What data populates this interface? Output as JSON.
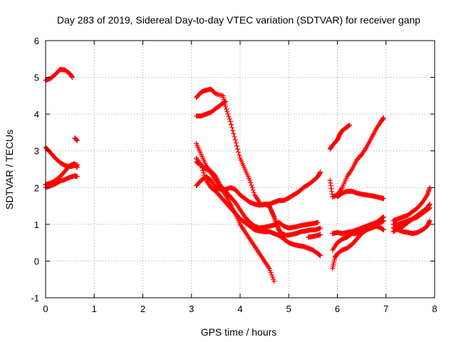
{
  "chart_data": {
    "type": "scatter",
    "title": "Day 283 of 2019, Sidereal Day-to-day VTEC variation (SDTVAR) for receiver ganp",
    "xlabel": "GPS time / hours",
    "ylabel": "SDTVAR / TECUs",
    "xlim": [
      0,
      8
    ],
    "ylim": [
      -1,
      6
    ],
    "xticks": [
      "0",
      "1",
      "2",
      "3",
      "4",
      "5",
      "6",
      "7",
      "8"
    ],
    "yticks": [
      "-1",
      "0",
      "1",
      "2",
      "3",
      "4",
      "5",
      "6"
    ],
    "grid": true,
    "marker": "plus",
    "color": "#ff0000",
    "segments": [
      [
        [
          0.0,
          4.92
        ],
        [
          0.1,
          4.97
        ],
        [
          0.2,
          5.08
        ],
        [
          0.3,
          5.22
        ],
        [
          0.4,
          5.2
        ],
        [
          0.5,
          5.1
        ],
        [
          0.55,
          5.0
        ]
      ],
      [
        [
          0.6,
          3.35
        ],
        [
          0.65,
          3.28
        ]
      ],
      [
        [
          0.0,
          3.1
        ],
        [
          0.1,
          2.95
        ],
        [
          0.2,
          2.8
        ],
        [
          0.3,
          2.68
        ],
        [
          0.4,
          2.6
        ],
        [
          0.5,
          2.57
        ],
        [
          0.6,
          2.6
        ],
        [
          0.65,
          2.62
        ]
      ],
      [
        [
          0.0,
          2.08
        ],
        [
          0.05,
          2.1
        ],
        [
          0.15,
          2.15
        ],
        [
          0.3,
          2.3
        ],
        [
          0.4,
          2.45
        ],
        [
          0.5,
          2.6
        ],
        [
          0.6,
          2.65
        ],
        [
          0.65,
          2.55
        ]
      ],
      [
        [
          0.0,
          2.0
        ],
        [
          0.1,
          2.05
        ],
        [
          0.2,
          2.1
        ],
        [
          0.3,
          2.18
        ],
        [
          0.4,
          2.22
        ],
        [
          0.5,
          2.28
        ],
        [
          0.6,
          2.32
        ],
        [
          0.65,
          2.3
        ]
      ],
      [
        [
          3.1,
          4.45
        ],
        [
          3.2,
          4.6
        ],
        [
          3.3,
          4.65
        ],
        [
          3.4,
          4.68
        ],
        [
          3.5,
          4.55
        ],
        [
          3.65,
          4.5
        ],
        [
          3.7,
          4.2
        ],
        [
          3.8,
          3.8
        ],
        [
          3.9,
          3.3
        ],
        [
          4.0,
          2.8
        ],
        [
          4.1,
          2.5
        ],
        [
          4.2,
          2.2
        ],
        [
          4.3,
          1.8
        ],
        [
          4.4,
          1.6
        ]
      ],
      [
        [
          3.1,
          3.95
        ],
        [
          3.2,
          3.95
        ],
        [
          3.3,
          4.0
        ],
        [
          3.4,
          4.05
        ],
        [
          3.5,
          4.15
        ],
        [
          3.6,
          4.25
        ],
        [
          3.7,
          4.35
        ]
      ],
      [
        [
          3.1,
          2.05
        ],
        [
          3.2,
          2.2
        ],
        [
          3.3,
          2.3
        ],
        [
          3.4,
          2.2
        ],
        [
          3.5,
          2.0
        ],
        [
          3.6,
          1.95
        ],
        [
          3.7,
          1.95
        ],
        [
          3.8,
          2.0
        ],
        [
          3.9,
          1.95
        ],
        [
          4.0,
          1.8
        ],
        [
          4.1,
          1.7
        ],
        [
          4.2,
          1.6
        ],
        [
          4.3,
          1.55
        ],
        [
          4.4,
          1.52
        ],
        [
          4.5,
          1.55
        ],
        [
          4.6,
          1.55
        ],
        [
          4.7,
          1.6
        ],
        [
          4.8,
          1.65
        ],
        [
          4.9,
          1.65
        ],
        [
          5.0,
          1.72
        ],
        [
          5.1,
          1.8
        ],
        [
          5.2,
          1.88
        ],
        [
          5.3,
          2.0
        ],
        [
          5.4,
          2.08
        ],
        [
          5.5,
          2.18
        ],
        [
          5.6,
          2.3
        ],
        [
          5.65,
          2.42
        ]
      ],
      [
        [
          3.1,
          3.2
        ],
        [
          3.2,
          2.9
        ],
        [
          3.3,
          2.6
        ],
        [
          3.4,
          2.4
        ],
        [
          3.5,
          2.2
        ],
        [
          3.6,
          2.0
        ],
        [
          3.7,
          1.8
        ],
        [
          3.8,
          1.55
        ],
        [
          3.9,
          1.3
        ],
        [
          4.0,
          1.0
        ],
        [
          4.1,
          0.8
        ],
        [
          4.2,
          0.6
        ],
        [
          4.3,
          0.4
        ],
        [
          4.4,
          0.2
        ],
        [
          4.5,
          0.0
        ],
        [
          4.6,
          -0.2
        ],
        [
          4.7,
          -0.55
        ]
      ],
      [
        [
          3.1,
          2.7
        ],
        [
          3.2,
          2.6
        ],
        [
          3.3,
          2.5
        ],
        [
          3.4,
          2.45
        ],
        [
          3.5,
          2.3
        ],
        [
          3.6,
          2.05
        ],
        [
          3.7,
          1.9
        ],
        [
          3.8,
          1.75
        ],
        [
          3.9,
          1.6
        ],
        [
          4.0,
          1.4
        ],
        [
          4.1,
          1.2
        ],
        [
          4.2,
          1.05
        ],
        [
          4.3,
          0.95
        ],
        [
          4.4,
          0.9
        ],
        [
          4.5,
          0.92
        ],
        [
          4.6,
          0.95
        ],
        [
          4.7,
          0.98
        ],
        [
          4.8,
          1.05
        ],
        [
          4.9,
          0.95
        ],
        [
          5.0,
          0.9
        ],
        [
          5.1,
          0.92
        ],
        [
          5.2,
          0.95
        ],
        [
          5.3,
          0.98
        ],
        [
          5.4,
          1.0
        ],
        [
          5.5,
          1.02
        ],
        [
          5.6,
          1.05
        ]
      ],
      [
        [
          3.1,
          2.8
        ],
        [
          3.2,
          2.6
        ],
        [
          3.3,
          2.2
        ],
        [
          3.4,
          2.0
        ],
        [
          3.5,
          1.9
        ],
        [
          3.6,
          1.75
        ],
        [
          3.7,
          1.6
        ],
        [
          3.8,
          1.45
        ],
        [
          3.9,
          1.3
        ],
        [
          4.0,
          1.15
        ],
        [
          4.1,
          1.05
        ],
        [
          4.2,
          0.95
        ],
        [
          4.3,
          0.85
        ],
        [
          4.4,
          0.82
        ],
        [
          4.5,
          0.8
        ],
        [
          4.6,
          0.8
        ],
        [
          4.7,
          0.75
        ],
        [
          4.8,
          0.7
        ],
        [
          4.9,
          0.6
        ],
        [
          5.0,
          0.5
        ],
        [
          5.1,
          0.45
        ],
        [
          5.2,
          0.42
        ],
        [
          5.3,
          0.4
        ],
        [
          5.4,
          0.35
        ],
        [
          5.5,
          0.3
        ],
        [
          5.6,
          0.2
        ],
        [
          5.65,
          0.15
        ]
      ],
      [
        [
          4.45,
          1.52
        ],
        [
          4.5,
          1.55
        ],
        [
          4.6,
          1.5
        ],
        [
          4.65,
          1.35
        ],
        [
          4.7,
          1.2
        ],
        [
          4.75,
          1.0
        ],
        [
          4.8,
          0.85
        ],
        [
          4.85,
          0.75
        ],
        [
          4.95,
          0.7
        ],
        [
          5.05,
          0.72
        ],
        [
          5.15,
          0.75
        ],
        [
          5.25,
          0.8
        ],
        [
          5.35,
          0.82
        ],
        [
          5.45,
          0.85
        ],
        [
          5.55,
          0.85
        ],
        [
          5.65,
          0.9
        ]
      ],
      [
        [
          5.4,
          0.65
        ],
        [
          5.5,
          0.67
        ],
        [
          5.6,
          0.7
        ],
        [
          5.65,
          0.72
        ]
      ],
      [
        [
          5.85,
          3.05
        ],
        [
          5.9,
          3.15
        ],
        [
          6.0,
          3.3
        ],
        [
          6.05,
          3.45
        ],
        [
          6.1,
          3.55
        ],
        [
          6.2,
          3.65
        ],
        [
          6.25,
          3.7
        ]
      ],
      [
        [
          5.85,
          2.2
        ],
        [
          5.9,
          1.75
        ],
        [
          6.0,
          1.8
        ],
        [
          6.1,
          2.0
        ],
        [
          6.2,
          2.3
        ],
        [
          6.3,
          2.5
        ],
        [
          6.4,
          2.75
        ],
        [
          6.5,
          2.9
        ],
        [
          6.6,
          3.1
        ],
        [
          6.7,
          3.35
        ],
        [
          6.8,
          3.6
        ],
        [
          6.9,
          3.8
        ],
        [
          6.95,
          3.9
        ]
      ],
      [
        [
          6.0,
          1.75
        ],
        [
          6.1,
          1.85
        ],
        [
          6.2,
          1.9
        ],
        [
          6.3,
          1.9
        ],
        [
          6.4,
          1.85
        ],
        [
          6.5,
          1.82
        ],
        [
          6.6,
          1.8
        ],
        [
          6.7,
          1.78
        ],
        [
          6.8,
          1.75
        ],
        [
          6.9,
          1.72
        ],
        [
          6.95,
          1.7
        ]
      ],
      [
        [
          5.9,
          0.3
        ],
        [
          6.0,
          0.5
        ],
        [
          6.1,
          0.6
        ],
        [
          6.2,
          0.65
        ],
        [
          6.3,
          0.75
        ],
        [
          6.4,
          0.75
        ],
        [
          6.5,
          0.8
        ],
        [
          6.6,
          0.9
        ],
        [
          6.7,
          0.98
        ],
        [
          6.8,
          1.02
        ],
        [
          6.9,
          1.05
        ],
        [
          6.95,
          1.1
        ]
      ],
      [
        [
          5.9,
          0.75
        ],
        [
          6.0,
          0.78
        ],
        [
          6.1,
          0.75
        ],
        [
          6.2,
          0.78
        ],
        [
          6.3,
          0.8
        ],
        [
          6.4,
          0.85
        ],
        [
          6.5,
          0.9
        ],
        [
          6.6,
          0.95
        ],
        [
          6.7,
          1.0
        ],
        [
          6.8,
          1.05
        ],
        [
          6.9,
          1.15
        ],
        [
          6.95,
          1.2
        ]
      ],
      [
        [
          5.9,
          -0.2
        ],
        [
          5.95,
          0.1
        ],
        [
          6.0,
          0.2
        ],
        [
          6.1,
          0.3
        ],
        [
          6.2,
          0.35
        ],
        [
          6.3,
          0.45
        ],
        [
          6.4,
          0.6
        ],
        [
          6.5,
          0.75
        ],
        [
          6.6,
          0.85
        ],
        [
          6.7,
          0.9
        ],
        [
          6.8,
          0.95
        ],
        [
          6.9,
          0.9
        ],
        [
          6.95,
          0.85
        ]
      ],
      [
        [
          7.15,
          1.1
        ],
        [
          7.25,
          1.15
        ],
        [
          7.35,
          1.2
        ],
        [
          7.45,
          1.25
        ],
        [
          7.55,
          1.35
        ],
        [
          7.65,
          1.45
        ],
        [
          7.75,
          1.6
        ],
        [
          7.85,
          1.8
        ],
        [
          7.9,
          2.0
        ]
      ],
      [
        [
          7.15,
          0.8
        ],
        [
          7.25,
          0.9
        ],
        [
          7.35,
          0.95
        ],
        [
          7.45,
          1.05
        ],
        [
          7.55,
          1.15
        ],
        [
          7.65,
          1.25
        ],
        [
          7.75,
          1.35
        ],
        [
          7.85,
          1.45
        ],
        [
          7.9,
          1.55
        ]
      ],
      [
        [
          7.15,
          1.0
        ],
        [
          7.25,
          1.0
        ],
        [
          7.35,
          1.05
        ],
        [
          7.45,
          1.1
        ],
        [
          7.55,
          1.15
        ],
        [
          7.65,
          1.2
        ],
        [
          7.75,
          1.3
        ],
        [
          7.85,
          1.4
        ],
        [
          7.9,
          1.45
        ]
      ],
      [
        [
          7.15,
          0.9
        ],
        [
          7.25,
          0.85
        ],
        [
          7.35,
          0.8
        ],
        [
          7.45,
          0.78
        ],
        [
          7.55,
          0.75
        ],
        [
          7.65,
          0.78
        ],
        [
          7.75,
          0.85
        ],
        [
          7.85,
          0.95
        ],
        [
          7.9,
          1.1
        ]
      ]
    ]
  }
}
